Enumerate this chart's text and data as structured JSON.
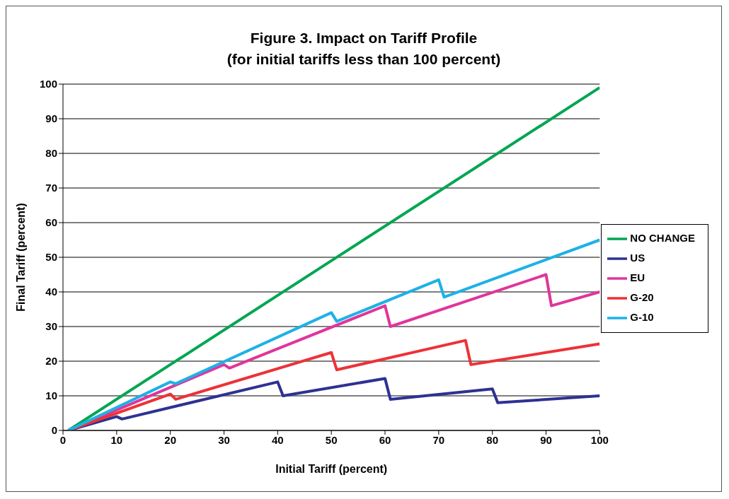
{
  "chart_data": {
    "type": "line",
    "title": "Figure 3. Impact on Tariff Profile",
    "subtitle": "(for initial tariffs less than 100 percent)",
    "xlabel": "Initial Tariff (percent)",
    "ylabel": "Final Tariff (percent)",
    "xlim": [
      0,
      100
    ],
    "xticks": [
      0,
      10,
      20,
      30,
      40,
      50,
      60,
      70,
      80,
      90,
      100
    ],
    "ylim": [
      0,
      100
    ],
    "yticks": [
      0,
      10,
      20,
      30,
      40,
      50,
      60,
      70,
      80,
      90,
      100
    ],
    "grid": "y",
    "legend": "right",
    "marker": "none",
    "line_style": "solid",
    "series": [
      {
        "name": "NO CHANGE",
        "color": "#00a651",
        "x": [
          1,
          50,
          100
        ],
        "values": [
          0,
          49,
          99
        ]
      },
      {
        "name": "US",
        "color": "#2e3192",
        "x": [
          1,
          10,
          11,
          40,
          41,
          60,
          61,
          80,
          81,
          100
        ],
        "values": [
          0,
          4,
          3.3,
          14,
          10,
          15,
          9,
          12,
          8,
          10
        ]
      },
      {
        "name": "EU",
        "color": "#e0359b",
        "x": [
          1,
          30,
          31,
          60,
          61,
          90,
          91,
          100
        ],
        "values": [
          0,
          19,
          18,
          36,
          30,
          45,
          36,
          40
        ]
      },
      {
        "name": "G-20",
        "color": "#ed3237",
        "x": [
          1,
          20,
          21,
          50,
          51,
          75,
          76,
          100
        ],
        "values": [
          0,
          10.5,
          9,
          22.5,
          17.5,
          26,
          19,
          25
        ]
      },
      {
        "name": "G-10",
        "color": "#1eb1e7",
        "x": [
          1,
          20,
          21,
          50,
          51,
          70,
          71,
          100
        ],
        "values": [
          0,
          14,
          13.5,
          34,
          31.5,
          43.5,
          38.5,
          55
        ]
      }
    ]
  }
}
